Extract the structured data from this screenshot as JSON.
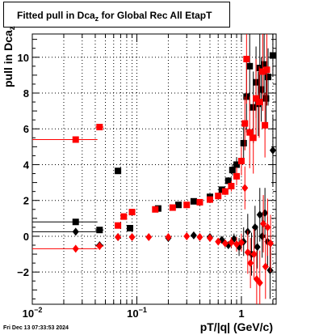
{
  "chart_data": {
    "type": "scatter",
    "title_main": "Fitted pull in Dca",
    "title_sub": "z",
    "title_rest": " for Global Rec All EtapT",
    "ylabel_main": "pull in Dca",
    "ylabel_sub": "z",
    "xlabel": "pT/|q| (GeV/c)",
    "timestamp": "Fri Dec 13 07:33:53 2024",
    "xscale": "log",
    "xlim": [
      0.01,
      2.15
    ],
    "ylim": [
      -3.8,
      11.3
    ],
    "grid": true,
    "x_tick_labels": [
      {
        "value": 0.01,
        "base": "10",
        "exp": "−2"
      },
      {
        "value": 0.1,
        "base": "10",
        "exp": "−1"
      },
      {
        "value": 1,
        "base": "1",
        "exp": ""
      }
    ],
    "y_tick_labels": [
      "−2",
      "0",
      "2",
      "4",
      "6",
      "8",
      "10"
    ],
    "y_tick_values": [
      -2,
      0,
      2,
      4,
      6,
      8,
      10
    ],
    "colors": {
      "black": "#000000",
      "red": "#ff0000"
    },
    "series": [
      {
        "color": "#000000",
        "marker": "square",
        "points": [
          [
            0.026,
            0.8,
            0.016,
            0.0
          ],
          [
            0.044,
            0.35,
            0.004,
            0.0
          ],
          [
            0.066,
            3.65,
            0,
            0.1
          ],
          [
            0.086,
            0.45,
            0,
            0.15
          ],
          [
            0.16,
            1.55,
            0,
            0.1
          ],
          [
            0.25,
            1.75,
            0,
            0.1
          ],
          [
            0.35,
            1.95,
            0,
            0.1
          ],
          [
            0.5,
            2.2,
            0,
            0.1
          ],
          [
            0.65,
            2.6,
            0,
            0.15
          ],
          [
            0.75,
            3.1,
            0,
            0.2
          ],
          [
            0.82,
            3.7,
            0,
            0.3
          ],
          [
            0.9,
            4.0,
            0,
            0.4
          ],
          [
            1.05,
            5.2,
            0,
            1.0
          ],
          [
            1.12,
            7.8,
            0,
            2.0
          ],
          [
            1.2,
            9.5,
            0,
            2.5
          ],
          [
            1.3,
            7.2,
            0,
            2.0
          ],
          [
            1.38,
            8.6,
            0,
            2.0
          ],
          [
            1.45,
            7.4,
            0,
            1.8
          ],
          [
            1.5,
            9.4,
            0,
            2.0
          ],
          [
            1.55,
            8.2,
            0,
            1.8
          ],
          [
            1.65,
            9.6,
            0,
            2.0
          ],
          [
            1.72,
            7.7,
            0,
            1.6
          ],
          [
            1.8,
            8.9,
            0,
            1.6
          ],
          [
            2.0,
            10.1,
            0,
            1.2
          ]
        ]
      },
      {
        "color": "#000000",
        "marker": "diamond",
        "points": [
          [
            0.026,
            0.25,
            0.016,
            0.0
          ],
          [
            0.044,
            -0.5,
            0.004,
            0.0
          ],
          [
            0.066,
            -0.05,
            0,
            0.1
          ],
          [
            0.2,
            -0.1,
            0,
            0.1
          ],
          [
            0.35,
            0.05,
            0,
            0.1
          ],
          [
            0.5,
            -0.05,
            0,
            0.1
          ],
          [
            0.65,
            -0.2,
            0,
            0.15
          ],
          [
            0.75,
            -0.5,
            0,
            0.2
          ],
          [
            0.85,
            -0.15,
            0,
            0.3
          ],
          [
            0.95,
            -0.6,
            0,
            0.5
          ],
          [
            1.05,
            -0.3,
            0,
            0.8
          ],
          [
            1.15,
            0.25,
            0,
            1.0
          ],
          [
            1.25,
            -1.0,
            0,
            1.2
          ],
          [
            1.35,
            0.5,
            0,
            1.2
          ],
          [
            1.42,
            -0.6,
            0,
            1.2
          ],
          [
            1.5,
            1.2,
            0,
            1.5
          ],
          [
            1.58,
            0.0,
            0,
            1.2
          ],
          [
            1.68,
            1.3,
            0,
            1.4
          ],
          [
            1.78,
            -0.3,
            0,
            1.4
          ],
          [
            1.88,
            -1.9,
            0,
            1.6
          ],
          [
            2.0,
            4.8,
            0,
            2.0
          ]
        ]
      },
      {
        "color": "#ff0000",
        "marker": "square",
        "points": [
          [
            0.026,
            5.4,
            0.016,
            0.0
          ],
          [
            0.044,
            6.1,
            0.004,
            0.0
          ],
          [
            0.066,
            0.6,
            0,
            0.1
          ],
          [
            0.075,
            1.1,
            0,
            0.1
          ],
          [
            0.09,
            1.35,
            0,
            0.1
          ],
          [
            0.15,
            1.5,
            0,
            0.1
          ],
          [
            0.22,
            1.6,
            0,
            0.1
          ],
          [
            0.3,
            1.75,
            0,
            0.1
          ],
          [
            0.4,
            1.9,
            0,
            0.1
          ],
          [
            0.5,
            2.05,
            0,
            0.1
          ],
          [
            0.6,
            2.25,
            0,
            0.15
          ],
          [
            0.7,
            2.5,
            0,
            0.2
          ],
          [
            0.8,
            2.8,
            0,
            0.3
          ],
          [
            0.9,
            3.35,
            0,
            0.5
          ],
          [
            1.0,
            4.2,
            0,
            0.8
          ],
          [
            1.08,
            6.3,
            0,
            1.5
          ],
          [
            1.12,
            9.9,
            0,
            2.5
          ],
          [
            1.2,
            5.8,
            0,
            2.0
          ],
          [
            1.3,
            5.5,
            0,
            2.0
          ],
          [
            1.38,
            7.7,
            0,
            2.2
          ],
          [
            1.48,
            7.5,
            0,
            2.0
          ],
          [
            1.6,
            9.2,
            0,
            2.2
          ],
          [
            1.68,
            6.2,
            0,
            1.8
          ],
          [
            1.75,
            9.3,
            0,
            2.0
          ]
        ]
      },
      {
        "color": "#ff0000",
        "marker": "diamond",
        "points": [
          [
            0.026,
            -0.7,
            0.016,
            0.0
          ],
          [
            0.044,
            -0.55,
            0.004,
            0.0
          ],
          [
            0.066,
            -0.05,
            0,
            0.1
          ],
          [
            0.09,
            -0.05,
            0,
            0.1
          ],
          [
            0.13,
            -0.05,
            0,
            0.1
          ],
          [
            0.2,
            -0.05,
            0,
            0.1
          ],
          [
            0.3,
            0.0,
            0,
            0.1
          ],
          [
            0.4,
            -0.05,
            0,
            0.1
          ],
          [
            0.5,
            -0.1,
            0,
            0.1
          ],
          [
            0.6,
            -0.3,
            0,
            0.15
          ],
          [
            0.7,
            -0.4,
            0,
            0.2
          ],
          [
            0.8,
            -0.35,
            0,
            0.3
          ],
          [
            0.9,
            -0.45,
            0,
            0.4
          ],
          [
            1.0,
            -0.35,
            0,
            0.5
          ],
          [
            1.08,
            2.7,
            0,
            1.2
          ],
          [
            1.15,
            -0.9,
            0,
            1.2
          ],
          [
            1.22,
            -1.5,
            0,
            1.4
          ],
          [
            1.32,
            -1.0,
            0,
            1.4
          ],
          [
            1.4,
            -2.4,
            0,
            1.6
          ],
          [
            1.5,
            -2.6,
            0,
            1.8
          ],
          [
            1.62,
            0.7,
            0,
            1.6
          ],
          [
            1.7,
            -1.7,
            0,
            1.8
          ],
          [
            1.78,
            0.5,
            0,
            1.6
          ],
          [
            1.9,
            -0.4,
            0,
            1.6
          ]
        ]
      }
    ]
  }
}
